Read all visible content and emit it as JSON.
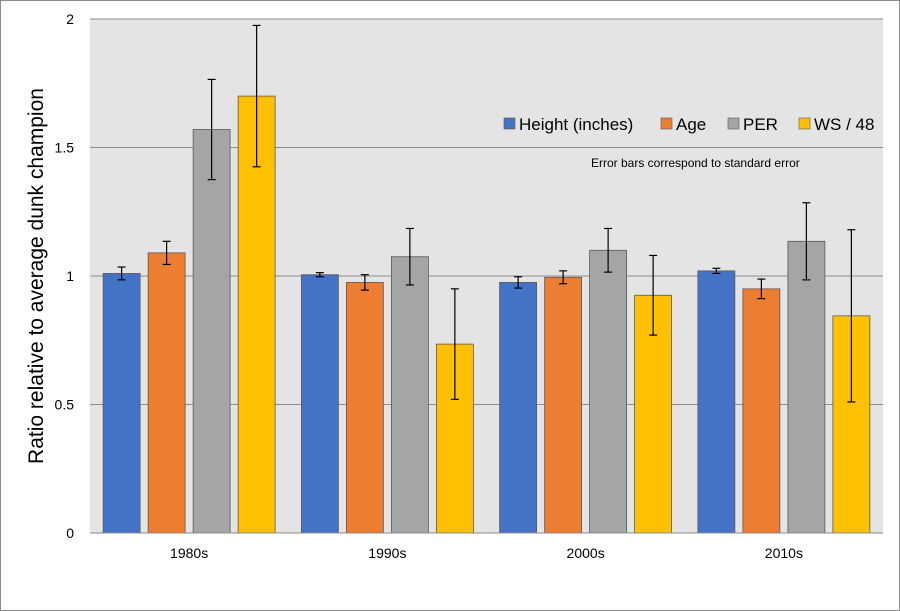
{
  "chart_data": {
    "type": "bar",
    "title": "",
    "xlabel": "",
    "ylabel": "Ratio relative to average dunk champion",
    "ylim": [
      0,
      2
    ],
    "yticks": [
      0,
      0.5,
      1,
      1.5,
      2
    ],
    "ytick_labels": [
      "0",
      "0.5",
      "1",
      "1.5",
      "2"
    ],
    "grid": true,
    "legend_position": "top-right",
    "annotation": "Error bars correspond to standard error",
    "categories": [
      "1980s",
      "1990s",
      "2000s",
      "2010s"
    ],
    "series": [
      {
        "name": "Height (inches)",
        "color": "#4472C4",
        "values": [
          1.01,
          1.005,
          0.975,
          1.02
        ],
        "errors": [
          0.025,
          0.008,
          0.022,
          0.01
        ]
      },
      {
        "name": "Age",
        "color": "#ED7D31",
        "values": [
          1.09,
          0.975,
          0.995,
          0.95
        ],
        "errors": [
          0.045,
          0.03,
          0.025,
          0.038
        ]
      },
      {
        "name": "PER",
        "color": "#A5A5A5",
        "values": [
          1.57,
          1.075,
          1.1,
          1.135
        ],
        "errors": [
          0.195,
          0.11,
          0.085,
          0.15
        ]
      },
      {
        "name": "WS / 48",
        "color": "#FFC000",
        "values": [
          1.7,
          0.735,
          0.925,
          0.845
        ],
        "errors": [
          0.275,
          0.215,
          0.155,
          0.335
        ]
      }
    ],
    "colors": {
      "plot_background": "#E4E4E4",
      "gridline": "#8C8C8C",
      "error_bar": "#000000",
      "bar_outline": "#5A5A5A"
    }
  }
}
